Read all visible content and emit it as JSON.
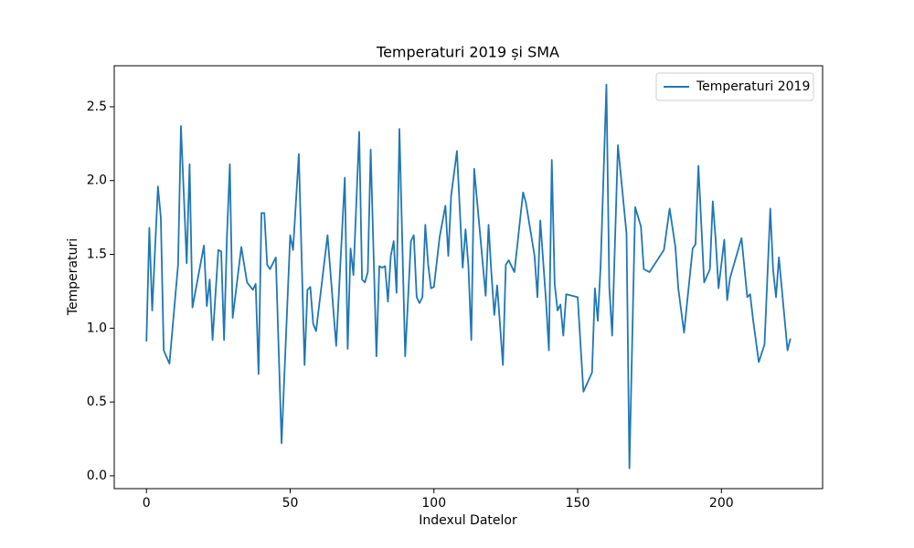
{
  "chart_data": {
    "type": "line",
    "title": "Temperaturi 2019 și SMA",
    "xlabel": "Indexul Datelor",
    "ylabel": "Temperaturi",
    "x": [
      0,
      1,
      2,
      4,
      5,
      6,
      8,
      11,
      12,
      14,
      15,
      16,
      20,
      21,
      22,
      23,
      25,
      26,
      27,
      28,
      29,
      30,
      33,
      34,
      35,
      37,
      38,
      39,
      40,
      41,
      42,
      43,
      45,
      47,
      50,
      51,
      53,
      55,
      56,
      57,
      58,
      59,
      63,
      66,
      69,
      70,
      71,
      72,
      74,
      75,
      76,
      77,
      78,
      80,
      81,
      82,
      83,
      84,
      85,
      86,
      87,
      88,
      90,
      92,
      93,
      94,
      95,
      96,
      97,
      98,
      99,
      100,
      102,
      104,
      105,
      106,
      108,
      110,
      111,
      112,
      113,
      114,
      118,
      119,
      120,
      121,
      122,
      124,
      125,
      126,
      128,
      131,
      132,
      135,
      136,
      137,
      139,
      140,
      141,
      142,
      143,
      144,
      145,
      146,
      150,
      152,
      155,
      156,
      157,
      158,
      160,
      161,
      162,
      164,
      167,
      168,
      170,
      172,
      173,
      175,
      180,
      182,
      184,
      185,
      187,
      190,
      191,
      192,
      194,
      196,
      197,
      198,
      199,
      201,
      202,
      203,
      207,
      209,
      210,
      211,
      213,
      215,
      217,
      218,
      219,
      220,
      223,
      224
    ],
    "series": [
      {
        "name": "Temperaturi 2019",
        "color": "#1f77b4",
        "values": [
          0.91,
          1.68,
          1.12,
          1.96,
          1.75,
          0.85,
          0.76,
          1.43,
          2.37,
          1.44,
          2.11,
          1.14,
          1.56,
          1.15,
          1.33,
          0.92,
          1.53,
          1.52,
          0.92,
          1.62,
          2.11,
          1.07,
          1.55,
          1.43,
          1.31,
          1.26,
          1.3,
          0.69,
          1.78,
          1.78,
          1.43,
          1.4,
          1.48,
          0.22,
          1.63,
          1.53,
          2.18,
          0.75,
          1.26,
          1.28,
          1.03,
          0.98,
          1.63,
          0.88,
          2.02,
          0.86,
          1.54,
          1.36,
          2.33,
          1.33,
          1.31,
          1.38,
          2.21,
          0.81,
          1.42,
          1.41,
          1.42,
          1.18,
          1.49,
          1.59,
          1.24,
          2.35,
          0.81,
          1.59,
          1.63,
          1.21,
          1.17,
          1.21,
          1.7,
          1.43,
          1.27,
          1.28,
          1.62,
          1.83,
          1.49,
          1.9,
          2.2,
          1.41,
          1.67,
          1.42,
          0.92,
          2.08,
          1.22,
          1.7,
          1.37,
          1.09,
          1.29,
          0.75,
          1.43,
          1.46,
          1.38,
          1.92,
          1.85,
          1.49,
          1.21,
          1.73,
          1.18,
          0.85,
          2.14,
          1.3,
          1.12,
          1.16,
          0.95,
          1.23,
          1.21,
          0.57,
          0.7,
          1.27,
          1.05,
          1.43,
          2.65,
          1.28,
          0.95,
          2.24,
          1.64,
          0.05,
          1.82,
          1.69,
          1.4,
          1.38,
          1.53,
          1.81,
          1.55,
          1.27,
          0.97,
          1.54,
          1.57,
          2.1,
          1.31,
          1.4,
          1.86,
          1.6,
          1.27,
          1.6,
          1.19,
          1.34,
          1.61,
          1.21,
          1.23,
          1.06,
          0.77,
          0.89,
          1.81,
          1.39,
          1.21,
          1.48,
          0.85,
          0.93
        ]
      }
    ],
    "xlim": [
      -11.2,
      235.2
    ],
    "xticks": [
      0,
      50,
      100,
      150,
      200
    ],
    "ylim": [
      -0.087,
      2.778
    ],
    "yticks": [
      {
        "value": 0,
        "label": "0.0"
      },
      0.5,
      {
        "value": 1,
        "label": "1.0"
      },
      1.5,
      {
        "value": 2,
        "label": "2.0"
      },
      2.5
    ],
    "legend": "upper right"
  }
}
